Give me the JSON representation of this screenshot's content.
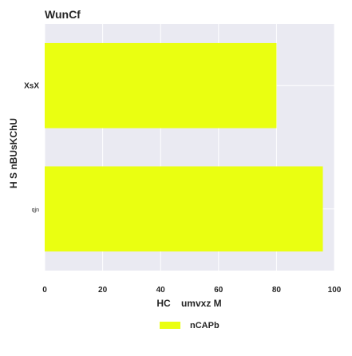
{
  "chart_data": {
    "type": "bar",
    "orientation": "horizontal",
    "title": "WunCf",
    "xlabel": "HC    umvxz M",
    "ylabel": "H S nBUsKChU",
    "categories": [
      "XsX",
      "qjn"
    ],
    "series": [
      {
        "name": "nCAPb",
        "values": [
          80,
          96
        ],
        "color": "#eaff11"
      }
    ],
    "xlim": [
      0,
      100
    ],
    "xticks": [
      "0",
      "20",
      "40",
      "60",
      "80",
      "100"
    ],
    "grid": true,
    "legend_position": "bottom-center",
    "colors": {
      "plot_background": "#eaeaf2",
      "grid": "#ffffff",
      "text": "#262626"
    }
  }
}
